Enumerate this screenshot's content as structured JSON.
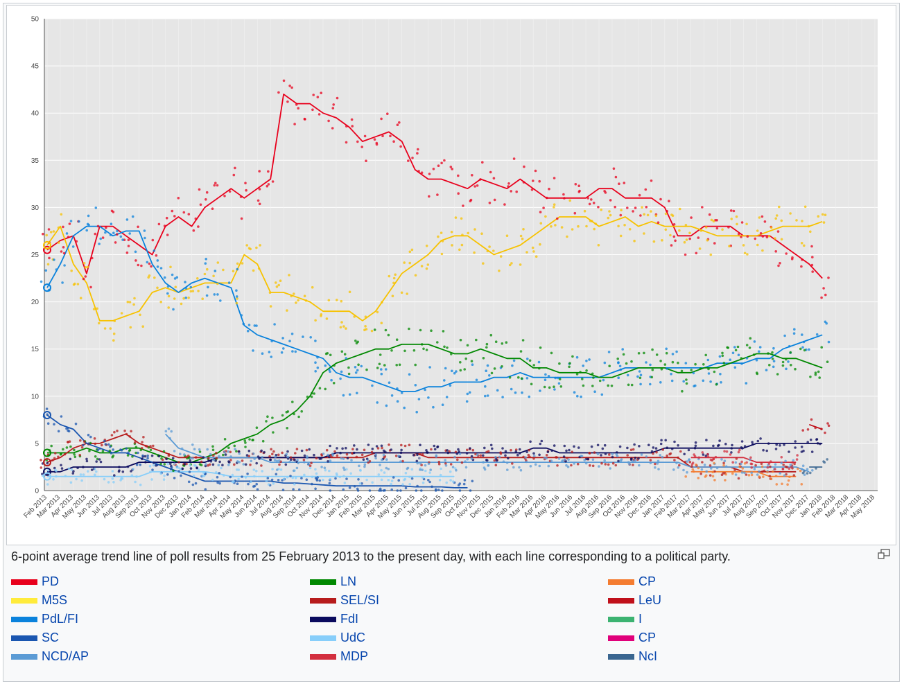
{
  "caption": "6-point average trend line of poll results from 25 February 2013 to the present day, with each line corresponding to a political party.",
  "legend": {
    "columns": [
      [
        {
          "label": "PD",
          "color": "#e8001c"
        },
        {
          "label": "M5S",
          "color": "#ffeb3b"
        },
        {
          "label": "PdL/FI",
          "color": "#0a82dc"
        },
        {
          "label": "SC",
          "color": "#1a56b0"
        },
        {
          "label": "NCD/AP",
          "color": "#5b9bd5"
        }
      ],
      [
        {
          "label": "LN",
          "color": "#008800"
        },
        {
          "label": "SEL/SI",
          "color": "#b71c1c"
        },
        {
          "label": "FdI",
          "color": "#0b0b5e"
        },
        {
          "label": "UdC",
          "color": "#87cefa"
        },
        {
          "label": "MDP",
          "color": "#d32f3f"
        }
      ],
      [
        {
          "label": "CP",
          "color": "#f47c30"
        },
        {
          "label": "LeU",
          "color": "#c0101a"
        },
        {
          "label": "I",
          "color": "#3cb371"
        },
        {
          "label": "CP",
          "color": "#e0007a"
        },
        {
          "label": "NcI",
          "color": "#3a6690"
        }
      ]
    ]
  },
  "chart_data": {
    "type": "line",
    "title": "",
    "xlabel": "",
    "ylabel": "",
    "ylim": [
      0,
      50
    ],
    "yticks": [
      0,
      5,
      10,
      15,
      20,
      25,
      30,
      35,
      40,
      45,
      50
    ],
    "grid": true,
    "x": [
      "Feb 2013",
      "Mar 2013",
      "Apr 2013",
      "May 2013",
      "Jun 2013",
      "Jul 2013",
      "Aug 2013",
      "Sep 2013",
      "Oct 2013",
      "Nov 2013",
      "Dec 2013",
      "Jan 2014",
      "Feb 2014",
      "Mar 2014",
      "Apr 2014",
      "May 2014",
      "Jun 2014",
      "Jul 2014",
      "Aug 2014",
      "Sep 2014",
      "Oct 2014",
      "Nov 2014",
      "Dec 2014",
      "Jan 2015",
      "Feb 2015",
      "Mar 2015",
      "Apr 2015",
      "May 2015",
      "Jun 2015",
      "Jul 2015",
      "Aug 2015",
      "Sep 2015",
      "Oct 2015",
      "Nov 2015",
      "Dec 2015",
      "Jan 2016",
      "Feb 2016",
      "Mar 2016",
      "Apr 2016",
      "May 2016",
      "Jun 2016",
      "Jul 2016",
      "Aug 2016",
      "Sep 2016",
      "Oct 2016",
      "Nov 2016",
      "Dec 2016",
      "Jan 2017",
      "Feb 2017",
      "Mar 2017",
      "Apr 2017",
      "May 2017",
      "Jun 2017",
      "Jul 2017",
      "Aug 2017",
      "Sep 2017",
      "Oct 2017",
      "Nov 2017",
      "Dec 2017",
      "Jan 2018",
      "Feb 2018",
      "Mar 2018",
      "Apr 2018",
      "May 2018"
    ],
    "series": [
      {
        "name": "PD",
        "color": "#e8001c",
        "values": [
          25.5,
          26.5,
          27,
          23,
          28,
          28,
          27,
          26,
          25,
          28,
          29,
          28,
          30,
          31,
          32,
          31,
          32,
          33,
          42,
          41,
          41,
          40,
          39.5,
          38.5,
          37,
          37.5,
          38,
          37,
          34,
          33,
          33,
          32.5,
          32,
          33,
          32.5,
          32,
          33,
          32,
          31,
          31,
          31,
          31,
          32,
          32,
          31,
          31,
          31,
          30,
          27,
          27,
          28,
          28,
          28,
          27,
          27,
          27,
          26,
          25,
          24,
          22.5,
          null,
          null,
          null,
          null
        ]
      },
      {
        "name": "M5S",
        "color": "#f7c200",
        "values": [
          26,
          28,
          24,
          22,
          18,
          18,
          18.5,
          19,
          21,
          21.5,
          21,
          21.5,
          22,
          22,
          22,
          25,
          24,
          21,
          21,
          20.5,
          20,
          19,
          19,
          19,
          18,
          19,
          21,
          23,
          24,
          25,
          26.5,
          27,
          27,
          26,
          25,
          25.5,
          26,
          27,
          28,
          29,
          29,
          29,
          28,
          28.5,
          29,
          28,
          28.5,
          28,
          28,
          28,
          27.5,
          27,
          27,
          27,
          27,
          27.5,
          28,
          28,
          28,
          28.5,
          null,
          null,
          null,
          null
        ]
      },
      {
        "name": "PdL/FI",
        "color": "#0a82dc",
        "values": [
          21.5,
          24,
          27,
          28,
          28,
          27,
          27.5,
          27.5,
          24,
          22,
          21,
          22,
          22.5,
          22,
          21.5,
          17.5,
          16.5,
          16,
          15.5,
          15,
          14.5,
          14,
          12.5,
          12,
          12,
          11.5,
          11,
          10.5,
          10.5,
          11,
          11,
          11.5,
          11.5,
          11.5,
          12,
          12,
          12.5,
          12,
          12,
          12,
          12,
          12,
          12,
          12.5,
          13,
          13,
          13,
          13,
          13,
          13,
          13,
          13.5,
          13.5,
          13.5,
          14,
          14,
          15,
          15.5,
          16,
          16.5,
          null,
          null,
          null,
          null
        ]
      },
      {
        "name": "LN",
        "color": "#008800",
        "values": [
          4,
          4,
          4,
          4.5,
          4,
          4,
          4.5,
          4.5,
          4,
          3.5,
          3,
          3,
          3.5,
          4,
          5,
          5.5,
          6,
          7,
          7.5,
          8.5,
          10,
          12.5,
          13.5,
          14,
          14.5,
          15,
          15,
          15.5,
          15.5,
          15.5,
          15,
          14.5,
          14.5,
          15,
          14.5,
          14,
          14,
          13,
          13,
          12.5,
          12.5,
          12.5,
          12,
          12,
          12.5,
          13,
          13,
          13,
          12.5,
          12.5,
          13,
          13,
          13.5,
          14,
          14.5,
          14.5,
          14,
          14,
          13.5,
          13,
          null,
          null,
          null,
          null
        ]
      },
      {
        "name": "SEL/SI",
        "color": "#b71c1c",
        "values": [
          3,
          3.5,
          4.5,
          5,
          5,
          5.5,
          6,
          5,
          4.5,
          4,
          3.5,
          3.5,
          3.5,
          3.5,
          3.5,
          3.5,
          3.5,
          3.5,
          3.5,
          3.5,
          3.5,
          3.5,
          3.5,
          3.5,
          3.5,
          4,
          4,
          4,
          4,
          3.5,
          3.5,
          3.5,
          3.5,
          3.5,
          3.5,
          3.5,
          3.5,
          3.5,
          3.5,
          3.5,
          3.5,
          3.5,
          3.5,
          3.5,
          3.5,
          3.5,
          3.5,
          3.5,
          3.5,
          2.5,
          2.5,
          2.5,
          2.5,
          2,
          2,
          2,
          2,
          2,
          null,
          null,
          null,
          null,
          null,
          null
        ]
      },
      {
        "name": "FdI",
        "color": "#0b0b5e",
        "values": [
          2,
          2,
          2.5,
          2.5,
          2.5,
          2.5,
          2.5,
          3,
          3,
          3,
          3,
          3,
          3,
          3.5,
          3.5,
          3.5,
          3.5,
          3.5,
          3.5,
          3.5,
          3.5,
          3.5,
          4,
          4,
          4,
          4,
          4,
          4,
          4,
          4,
          4,
          4,
          4,
          4,
          4,
          4,
          4,
          4.5,
          4.5,
          4,
          4,
          4,
          4,
          4,
          4,
          4,
          4,
          4.5,
          4.5,
          4.5,
          4.5,
          4.5,
          4.5,
          4.5,
          5,
          5,
          5,
          5,
          5,
          5,
          null,
          null,
          null,
          null
        ]
      },
      {
        "name": "SC",
        "color": "#1a56b0",
        "values": [
          8,
          7,
          6.5,
          5,
          4.5,
          4,
          4,
          3.5,
          3,
          2.5,
          2,
          1.5,
          1,
          1,
          1,
          1,
          1,
          1,
          0.8,
          0.8,
          0.7,
          0.6,
          0.5,
          0.5,
          0.5,
          0.5,
          0.5,
          0.5,
          0.4,
          0.4,
          0.4,
          0.3,
          0.3,
          null,
          null,
          null,
          null,
          null,
          null,
          null,
          null,
          null,
          null,
          null,
          null,
          null,
          null,
          null,
          null,
          null,
          null,
          null,
          null,
          null,
          null,
          null,
          null,
          null,
          null,
          null,
          null,
          null,
          null,
          null
        ]
      },
      {
        "name": "UdC",
        "color": "#87cefa",
        "values": [
          1.5,
          1.5,
          1.5,
          1.5,
          1.5,
          1.5,
          1.5,
          1.5,
          2,
          2,
          2,
          2,
          2,
          1.8,
          1.5,
          1.5,
          1.5,
          1.5,
          1.5,
          1.5,
          1.5,
          1.5,
          1.5,
          1.5,
          1.5,
          1.5,
          1.5,
          1.5,
          1.5,
          1.5,
          1.5,
          1.5,
          null,
          null,
          null,
          null,
          null,
          null,
          null,
          null,
          null,
          null,
          null,
          null,
          null,
          null,
          null,
          null,
          null,
          null,
          null,
          null,
          null,
          null,
          null,
          null,
          null,
          null,
          null,
          null,
          null,
          null,
          null,
          null
        ]
      },
      {
        "name": "NCD/AP",
        "color": "#5b9bd5",
        "values": [
          null,
          null,
          null,
          null,
          null,
          null,
          null,
          null,
          null,
          6,
          4.5,
          4,
          3.5,
          3.5,
          3.5,
          3.5,
          3.5,
          3,
          3,
          3,
          3,
          3,
          3,
          3,
          3,
          3,
          3,
          3,
          3,
          3,
          3,
          3,
          3,
          3,
          3,
          3,
          3,
          3,
          3,
          3,
          3,
          3,
          3,
          3,
          3,
          3,
          3,
          3,
          3,
          2.5,
          2.5,
          2.5,
          2.5,
          2.5,
          2.5,
          2.5,
          2.5,
          2.5,
          2,
          null,
          null,
          null,
          null,
          null
        ]
      },
      {
        "name": "MDP",
        "color": "#d32f3f",
        "values": [
          null,
          null,
          null,
          null,
          null,
          null,
          null,
          null,
          null,
          null,
          null,
          null,
          null,
          null,
          null,
          null,
          null,
          null,
          null,
          null,
          null,
          null,
          null,
          null,
          null,
          null,
          null,
          null,
          null,
          null,
          null,
          null,
          null,
          null,
          null,
          null,
          null,
          null,
          null,
          null,
          null,
          null,
          null,
          null,
          null,
          null,
          null,
          null,
          null,
          3.5,
          3.5,
          3.5,
          3.5,
          3.5,
          3,
          3,
          3,
          3,
          null,
          null,
          null,
          null,
          null,
          null
        ]
      },
      {
        "name": "CP",
        "color": "#f47c30",
        "values": [
          null,
          null,
          null,
          null,
          null,
          null,
          null,
          null,
          null,
          null,
          null,
          null,
          null,
          null,
          null,
          null,
          null,
          null,
          null,
          null,
          null,
          null,
          null,
          null,
          null,
          null,
          null,
          null,
          null,
          null,
          null,
          null,
          null,
          null,
          null,
          null,
          null,
          null,
          null,
          null,
          null,
          null,
          null,
          null,
          null,
          null,
          null,
          null,
          null,
          2,
          2,
          2,
          2,
          2,
          2,
          1.5,
          1.5,
          1.5,
          null,
          null,
          null,
          null,
          null,
          null
        ]
      },
      {
        "name": "LeU",
        "color": "#c0101a",
        "values": [
          null,
          null,
          null,
          null,
          null,
          null,
          null,
          null,
          null,
          null,
          null,
          null,
          null,
          null,
          null,
          null,
          null,
          null,
          null,
          null,
          null,
          null,
          null,
          null,
          null,
          null,
          null,
          null,
          null,
          null,
          null,
          null,
          null,
          null,
          null,
          null,
          null,
          null,
          null,
          null,
          null,
          null,
          null,
          null,
          null,
          null,
          null,
          null,
          null,
          null,
          null,
          null,
          null,
          null,
          null,
          null,
          null,
          null,
          7,
          6.5,
          null,
          null,
          null,
          null
        ]
      },
      {
        "name": "NcI",
        "color": "#3a6690",
        "values": [
          null,
          null,
          null,
          null,
          null,
          null,
          null,
          null,
          null,
          null,
          null,
          null,
          null,
          null,
          null,
          null,
          null,
          null,
          null,
          null,
          null,
          null,
          null,
          null,
          null,
          null,
          null,
          null,
          null,
          null,
          null,
          null,
          null,
          null,
          null,
          null,
          null,
          null,
          null,
          null,
          null,
          null,
          null,
          null,
          null,
          null,
          null,
          null,
          null,
          null,
          null,
          null,
          null,
          null,
          null,
          null,
          null,
          null,
          2.5,
          2.5,
          null,
          null,
          null,
          null
        ]
      }
    ]
  }
}
